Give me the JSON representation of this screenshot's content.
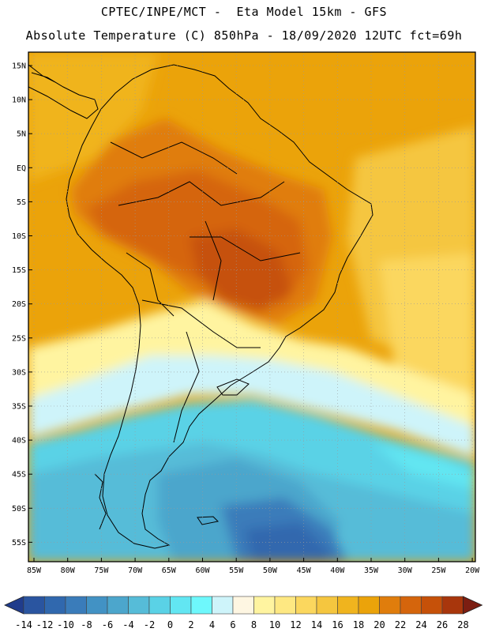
{
  "header": {
    "line1": "CPTEC/INPE/MCT -  Eta Model 15km - GFS",
    "line2": "Absolute Temperature (C) 850hPa - 18/09/2020 12UTC fct=69h"
  },
  "map": {
    "lat_labels": [
      "15N",
      "10N",
      "5N",
      "EQ",
      "5S",
      "10S",
      "15S",
      "20S",
      "25S",
      "30S",
      "35S",
      "40S",
      "45S",
      "50S",
      "55S"
    ],
    "lon_labels": [
      "85W",
      "80W",
      "75W",
      "70W",
      "65W",
      "60W",
      "55W",
      "50W",
      "45W",
      "40W",
      "35W",
      "30W",
      "25W",
      "20W"
    ]
  },
  "colorbar": {
    "ticks": [
      "-14",
      "-12",
      "-10",
      "-8",
      "-6",
      "-4",
      "-2",
      "0",
      "2",
      "4",
      "6",
      "8",
      "10",
      "12",
      "14",
      "16",
      "18",
      "20",
      "22",
      "24",
      "26",
      "28"
    ],
    "colors": [
      "#203c8c",
      "#2a55a0",
      "#3068ae",
      "#3a7cba",
      "#4292c4",
      "#4ca6cc",
      "#56bcd8",
      "#5ad2e6",
      "#62e6f2",
      "#6ef8fc",
      "#cef4fa",
      "#fef6e2",
      "#fff4a0",
      "#fee882",
      "#fbd75e",
      "#f5c63f",
      "#f0b41e",
      "#eba30a",
      "#e07d0c",
      "#d5650c",
      "#c65109",
      "#a8360c",
      "#7c1e12"
    ]
  }
}
